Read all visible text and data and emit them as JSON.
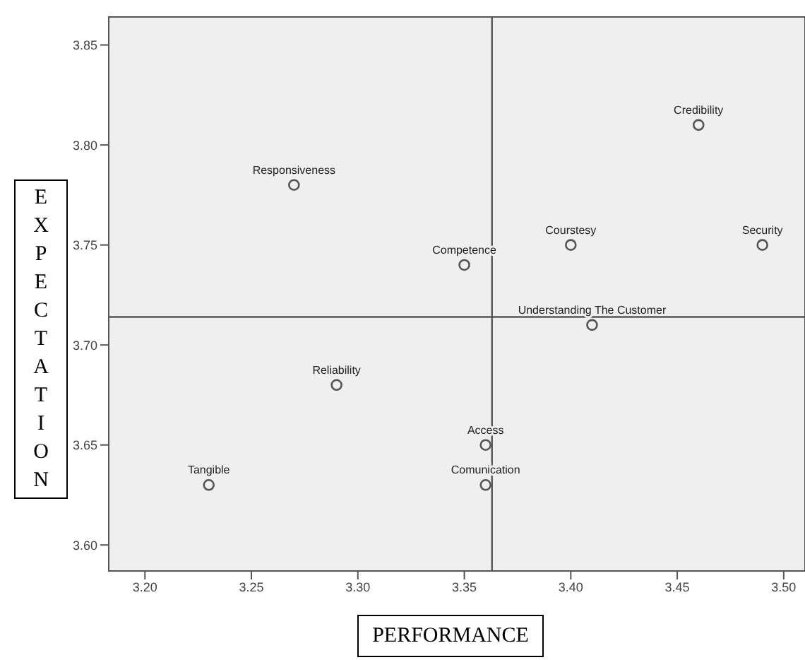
{
  "chart_data": {
    "type": "scatter",
    "xlabel": "PERFORMANCE",
    "ylabel": "EXPECTATION",
    "x": [
      3.27,
      3.46,
      3.4,
      3.49,
      3.35,
      3.41,
      3.29,
      3.36,
      3.36,
      3.23
    ],
    "series": [
      {
        "color": "#555555",
        "values": [
          3.78,
          3.81,
          3.75,
          3.75,
          3.74,
          3.71,
          3.68,
          3.65,
          3.63,
          3.63
        ]
      }
    ],
    "xlim": [
      3.183,
      3.51
    ],
    "xticks": [
      {
        "value": 3.2,
        "label": "3.20"
      },
      {
        "value": 3.25,
        "label": "3.25"
      },
      {
        "value": 3.3,
        "label": "3.30"
      },
      {
        "value": 3.35,
        "label": "3.35"
      },
      {
        "value": 3.4,
        "label": "3.40"
      },
      {
        "value": 3.45,
        "label": "3.45"
      },
      {
        "value": 3.5,
        "label": "3.50"
      }
    ],
    "ylim": [
      3.587,
      3.864
    ],
    "yticks": [
      {
        "value": 3.6,
        "label": "3.60"
      },
      {
        "value": 3.65,
        "label": "3.65"
      },
      {
        "value": 3.7,
        "label": "3.70"
      },
      {
        "value": 3.75,
        "label": "3.75"
      },
      {
        "value": 3.8,
        "label": "3.80"
      },
      {
        "value": 3.85,
        "label": "3.85"
      }
    ],
    "ref_lines": [
      {
        "axis": "x",
        "value": 3.363,
        "color": "#555555"
      },
      {
        "axis": "y",
        "value": 3.714,
        "color": "#555555"
      }
    ],
    "annotations": [
      {
        "text": "Responsiveness",
        "x": 3.27,
        "y": 3.78
      },
      {
        "text": "Credibility",
        "x": 3.46,
        "y": 3.81
      },
      {
        "text": "Courstesy",
        "x": 3.4,
        "y": 3.75
      },
      {
        "text": "Security",
        "x": 3.49,
        "y": 3.75
      },
      {
        "text": "Competence",
        "x": 3.35,
        "y": 3.74
      },
      {
        "text": "Understanding The Customer",
        "x": 3.41,
        "y": 3.71
      },
      {
        "text": "Reliability",
        "x": 3.29,
        "y": 3.68
      },
      {
        "text": "Access",
        "x": 3.36,
        "y": 3.65
      },
      {
        "text": "Comunication",
        "x": 3.36,
        "y": 3.63
      },
      {
        "text": "Tangible",
        "x": 3.23,
        "y": 3.63
      }
    ],
    "marker": "circle"
  }
}
